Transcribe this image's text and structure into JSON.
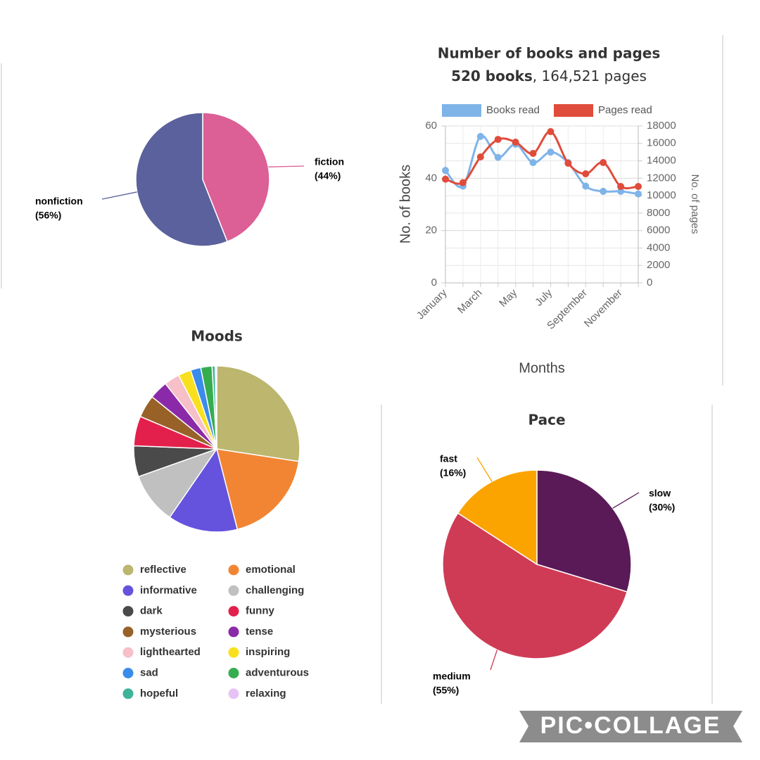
{
  "chart_data": [
    {
      "type": "pie",
      "categories": [
        "fiction",
        "nonfiction"
      ],
      "values": [
        44,
        56
      ],
      "value_labels": [
        "(44%)",
        "(56%)"
      ],
      "colors": [
        "#dc5f96",
        "#5a619c"
      ]
    },
    {
      "type": "line",
      "title": "Number of books and pages",
      "subtitle": [
        "520 books",
        ", 164,521 pages"
      ],
      "categories": [
        "January",
        null,
        "March",
        null,
        "May",
        null,
        "July",
        null,
        "September",
        null,
        "November",
        null
      ],
      "series": [
        {
          "name": "Books read",
          "color": "#7fb4e8",
          "values": [
            43,
            37,
            56,
            48,
            53,
            46,
            50,
            46,
            37,
            35,
            35,
            34
          ]
        },
        {
          "name": "Pages read",
          "color": "#e04c3b",
          "axis": "y2",
          "values": [
            11900,
            11500,
            14450,
            16460,
            16140,
            14850,
            17350,
            13720,
            12510,
            13800,
            11060,
            11060
          ]
        }
      ],
      "ylim": [
        0,
        60
      ],
      "yticks": [
        0,
        20,
        40,
        60
      ],
      "y2lim": [
        0,
        18000
      ],
      "y2ticks": [
        0,
        2000,
        4000,
        6000,
        8000,
        10000,
        12000,
        14000,
        16000,
        18000
      ],
      "ylabel": "No. of books",
      "y2label": "No. of pages",
      "xlabel": "Months",
      "grid": true,
      "legend": "top"
    },
    {
      "type": "pie",
      "title": "Moods",
      "categories": [
        "reflective",
        "emotional",
        "informative",
        "challenging",
        "dark",
        "funny",
        "mysterious",
        "tense",
        "lighthearted",
        "inspiring",
        "sad",
        "adventurous",
        "hopeful",
        "relaxing"
      ],
      "values": [
        27.4,
        18.6,
        13.6,
        10,
        6,
        5.8,
        4.4,
        3.6,
        3,
        2.5,
        2,
        2.2,
        0.6,
        0.3
      ],
      "colors": [
        "#bcb66e",
        "#f28533",
        "#6553dd",
        "#c0c0c0",
        "#4a4a4a",
        "#e3204b",
        "#976128",
        "#8b2aa8",
        "#f7bfc8",
        "#f8e01e",
        "#3b8beb",
        "#35ad4f",
        "#3eb39a",
        "#e7c3f5"
      ],
      "legend": "bottom"
    },
    {
      "type": "pie",
      "title": "Pace",
      "categories": [
        "slow",
        "medium",
        "fast"
      ],
      "values": [
        30,
        55,
        16
      ],
      "value_labels": [
        "(30%)",
        "(55%)",
        "(16%)"
      ],
      "colors": [
        "#5a1a58",
        "#cf3b55",
        "#fba400"
      ]
    }
  ],
  "watermark": "PIC•COLLAGE"
}
